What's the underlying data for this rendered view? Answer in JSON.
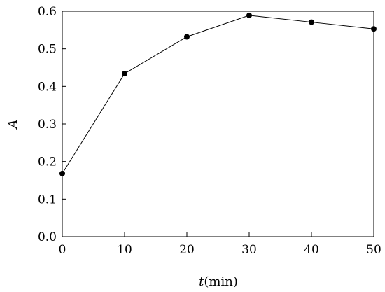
{
  "chart_data": {
    "type": "line",
    "title": "",
    "xlabel_var": "t",
    "xlabel_unit": "(min)",
    "ylabel": "A",
    "x": [
      0,
      10,
      20,
      30,
      40,
      50
    ],
    "series": [
      {
        "values": [
          0.168,
          0.434,
          0.532,
          0.589,
          0.571,
          0.553
        ]
      }
    ],
    "xlim": [
      0,
      50
    ],
    "ylim": [
      0,
      0.6
    ],
    "x_ticks": [
      "0",
      "10",
      "20",
      "30",
      "40",
      "50"
    ],
    "y_ticks": [
      "0.0",
      "0.1",
      "0.2",
      "0.3",
      "0.4",
      "0.5",
      "0.6"
    ],
    "grid": false,
    "marker": "filled-circle",
    "line_color": "#000000"
  }
}
